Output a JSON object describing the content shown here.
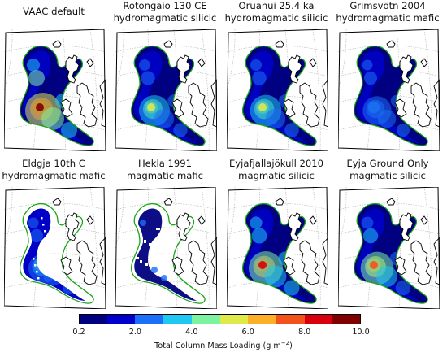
{
  "panels": [
    {
      "title_lines": [
        "VAAC default"
      ],
      "footprint": "full"
    },
    {
      "title_lines": [
        "Rotongaio 130 CE",
        "hydromagmatic silicic"
      ],
      "footprint": "full"
    },
    {
      "title_lines": [
        "Oruanui 25.4 ka",
        "hydromagmatic silicic"
      ],
      "footprint": "full"
    },
    {
      "title_lines": [
        "Grimsvötn 2004",
        "hydromagmatic mafic"
      ],
      "footprint": "full"
    },
    {
      "title_lines": [
        "Eldgja 10th C",
        "hydromagmatic mafic"
      ],
      "footprint": "inner"
    },
    {
      "title_lines": [
        "Hekla 1991",
        "magmatic mafic"
      ],
      "footprint": "sparse"
    },
    {
      "title_lines": [
        "Eyjafjallajökull 2010",
        "magmatic silicic"
      ],
      "footprint": "full"
    },
    {
      "title_lines": [
        "Eyja Ground Only",
        "magmatic silicic"
      ],
      "footprint": "full"
    }
  ],
  "colorbar": {
    "ticks": [
      "0.2",
      "2.0",
      "4.0",
      "6.0",
      "8.0",
      "10.0"
    ],
    "label_text": "Total Column Mass Loading (g m",
    "label_sup": "−2",
    "label_end": ")",
    "colors": [
      "#000080",
      "#0000cd",
      "#1c6ff8",
      "#1ec8f0",
      "#7df2a0",
      "#dfe94a",
      "#fbb028",
      "#f4521c",
      "#d7000c",
      "#800000"
    ]
  },
  "legend_colors": {
    "outline": "#1aa51a",
    "land": "#ffffff",
    "coast": "#000000",
    "grid": "#b4b4b4"
  }
}
